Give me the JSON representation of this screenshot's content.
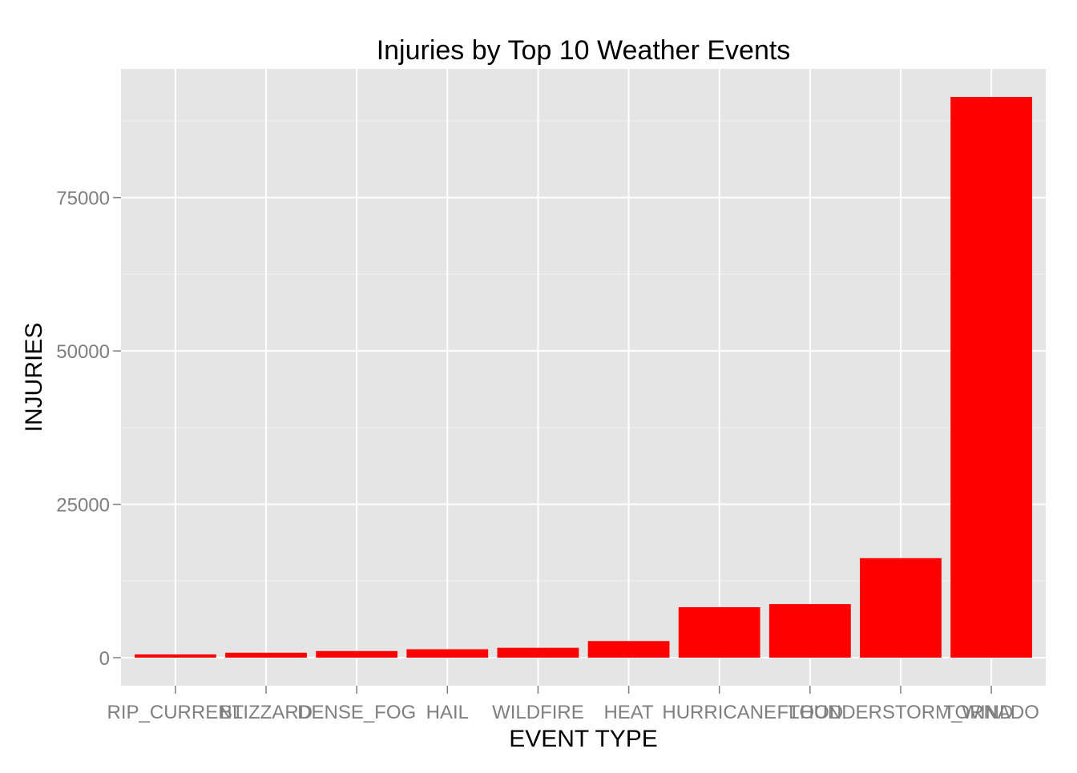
{
  "chart_data": {
    "type": "bar",
    "title": "Injuries by Top 10 Weather Events",
    "xlabel": "EVENT TYPE",
    "ylabel": "INJURIES",
    "categories": [
      "RIP_CURRENT",
      "BLIZZARD",
      "DENSE_FOG",
      "HAIL",
      "WILDFIRE",
      "HEAT",
      "HURRICANE",
      "FLOOD",
      "THUNDERSTORM_WIND",
      "TORNADO"
    ],
    "values": [
      530,
      806,
      1076,
      1371,
      1608,
      2703,
      8223,
      8731,
      16222,
      91407
    ],
    "ylim": [
      -4570,
      95977
    ],
    "yticks": [
      0,
      25000,
      50000,
      75000
    ],
    "ytick_labels": [
      "0",
      "25000",
      "50000",
      "75000"
    ],
    "grid": true,
    "colors": {
      "bar": "#ff0000",
      "panel": "#e5e5e5",
      "grid_major": "#ffffff",
      "grid_minor": "#f2f2f2",
      "tick_text": "#7f7f7f",
      "title_text": "#000000"
    }
  }
}
